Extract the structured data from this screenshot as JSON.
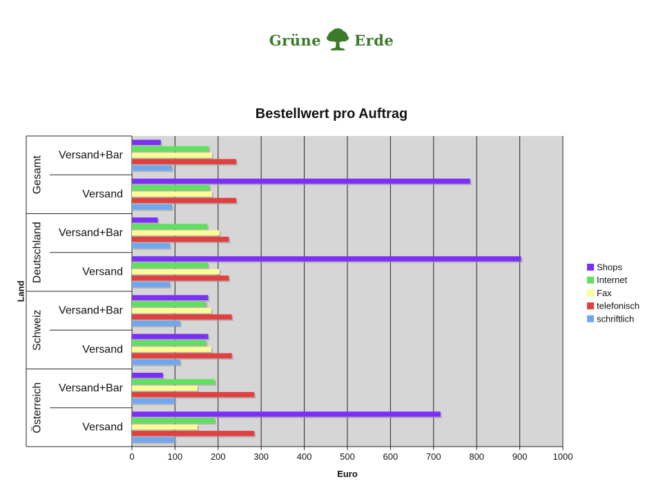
{
  "brand": {
    "left_word": "Grüne",
    "right_word": "Erde",
    "icon": "tree-icon",
    "color": "#3c7a2a"
  },
  "chart_data": {
    "type": "bar",
    "orientation": "horizontal",
    "title": "Bestellwert pro Auftrag",
    "xlabel": "Euro",
    "ylabel": "Land",
    "xlim": [
      0,
      1000
    ],
    "xticks": [
      0,
      100,
      200,
      300,
      400,
      500,
      600,
      700,
      800,
      900,
      1000
    ],
    "grid": true,
    "legend_position": "right",
    "groups": [
      {
        "name": "Gesamt",
        "categories": [
          "Versand+Bar",
          "Versand"
        ]
      },
      {
        "name": "Deutschland",
        "categories": [
          "Versand+Bar",
          "Versand"
        ]
      },
      {
        "name": "Schweiz",
        "categories": [
          "Versand+Bar",
          "Versand"
        ]
      },
      {
        "name": "Österreich",
        "categories": [
          "Versand+Bar",
          "Versand"
        ]
      }
    ],
    "series": [
      {
        "name": "Shops",
        "color": "#7b2ff7",
        "values": [
          67,
          785,
          60,
          903,
          177,
          177,
          72,
          716
        ]
      },
      {
        "name": "Internet",
        "color": "#5fe05f",
        "values": [
          178,
          180,
          175,
          176,
          172,
          172,
          192,
          192
        ]
      },
      {
        "name": "Fax",
        "color": "#fdfd96",
        "values": [
          186,
          186,
          203,
          203,
          184,
          184,
          152,
          152
        ]
      },
      {
        "name": "telefonisch",
        "color": "#e04040",
        "values": [
          242,
          242,
          225,
          225,
          232,
          232,
          284,
          284
        ]
      },
      {
        "name": "schriftlich",
        "color": "#6fa8f0",
        "values": [
          93,
          93,
          88,
          88,
          112,
          112,
          100,
          100
        ]
      }
    ]
  }
}
